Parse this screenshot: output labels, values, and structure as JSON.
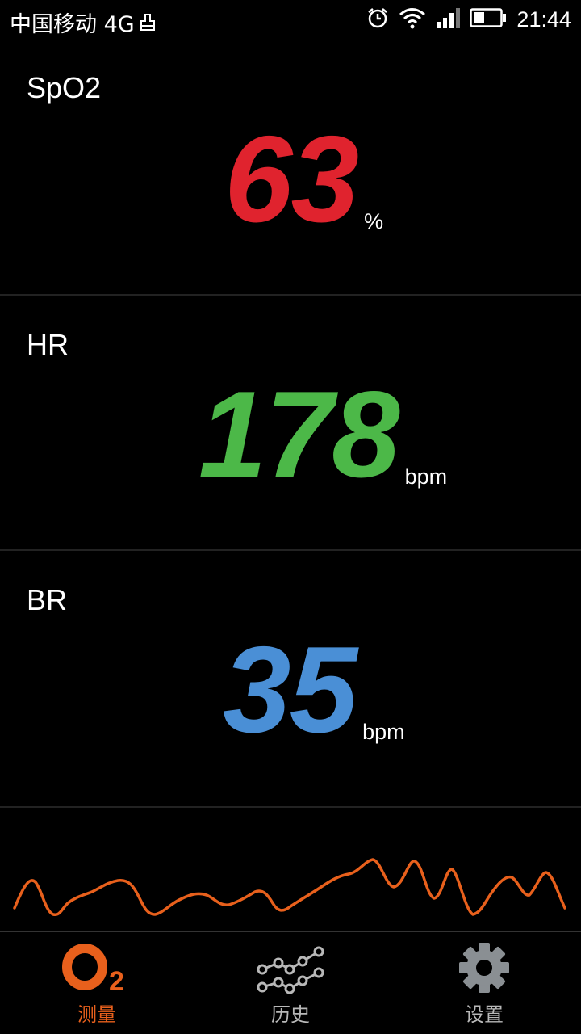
{
  "status_bar": {
    "carrier": "中国移动 4G",
    "time": "21:44",
    "icons": [
      "usb-icon",
      "alarm-icon",
      "wifi-icon",
      "signal-icon",
      "battery-icon"
    ]
  },
  "panels": {
    "spo2": {
      "label": "SpO2",
      "value": "63",
      "unit": "%",
      "color": "#e0232e"
    },
    "hr": {
      "label": "HR",
      "value": "178",
      "unit": "bpm",
      "color": "#4cb848"
    },
    "br": {
      "label": "BR",
      "value": "35",
      "unit": "bpm",
      "color": "#4a8fd6"
    }
  },
  "waveform": {
    "color": "#e8601c"
  },
  "nav": {
    "items": [
      {
        "label": "测量",
        "icon": "o2-icon",
        "active": true,
        "color": "#e8601c"
      },
      {
        "label": "历史",
        "icon": "history-chart-icon",
        "active": false,
        "color": "#b8b8b8"
      },
      {
        "label": "设置",
        "icon": "gear-icon",
        "active": false,
        "color": "#b8b8b8"
      }
    ]
  }
}
